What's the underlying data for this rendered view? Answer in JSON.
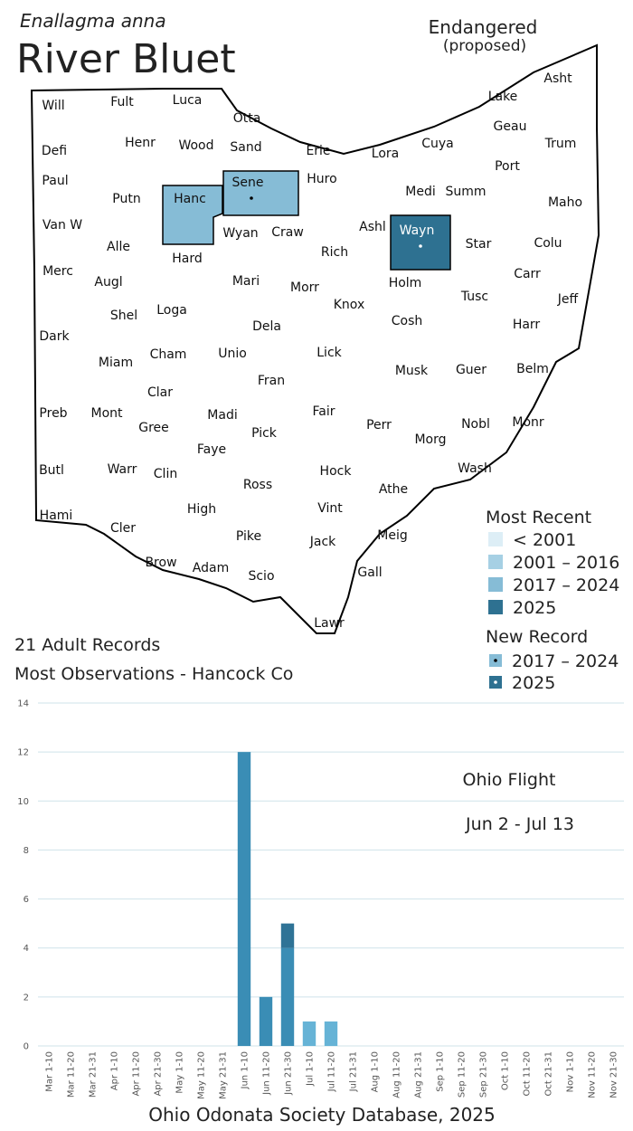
{
  "species": "Enallagma anna",
  "title": "River Bluet",
  "status": "Endangered",
  "status_note": "(proposed)",
  "map": {
    "outline_color": "#000000",
    "counties": [
      {
        "label": "Will"
      },
      {
        "label": "Fult"
      },
      {
        "label": "Luca"
      },
      {
        "label": "Otta"
      },
      {
        "label": "Defi"
      },
      {
        "label": "Henr"
      },
      {
        "label": "Wood"
      },
      {
        "label": "Sand"
      },
      {
        "label": "Erie"
      },
      {
        "label": "Lora"
      },
      {
        "label": "Cuya"
      },
      {
        "label": "Lake"
      },
      {
        "label": "Asht"
      },
      {
        "label": "Geau"
      },
      {
        "label": "Trum"
      },
      {
        "label": "Paul"
      },
      {
        "label": "Putn"
      },
      {
        "label": "Hanc",
        "fill": "#86bcd6"
      },
      {
        "label": "Sene",
        "fill": "#86bcd6",
        "marker": "#000000"
      },
      {
        "label": "Huro"
      },
      {
        "label": "Medi"
      },
      {
        "label": "Summ"
      },
      {
        "label": "Port"
      },
      {
        "label": "Maho"
      },
      {
        "label": "Van W"
      },
      {
        "label": "Alle"
      },
      {
        "label": "Wyan"
      },
      {
        "label": "Craw"
      },
      {
        "label": "Ashl"
      },
      {
        "label": "Wayn",
        "fill": "#2e7191",
        "marker": "#ffffff"
      },
      {
        "label": "Star"
      },
      {
        "label": "Colu"
      },
      {
        "label": "Merc"
      },
      {
        "label": "Augl"
      },
      {
        "label": "Hard"
      },
      {
        "label": "Mari"
      },
      {
        "label": "Morr"
      },
      {
        "label": "Rich"
      },
      {
        "label": "Holm"
      },
      {
        "label": "Tusc"
      },
      {
        "label": "Carr"
      },
      {
        "label": "Jeff"
      },
      {
        "label": "Shel"
      },
      {
        "label": "Loga"
      },
      {
        "label": "Dela"
      },
      {
        "label": "Knox"
      },
      {
        "label": "Cosh"
      },
      {
        "label": "Harr"
      },
      {
        "label": "Dark"
      },
      {
        "label": "Miam"
      },
      {
        "label": "Cham"
      },
      {
        "label": "Unio"
      },
      {
        "label": "Lick"
      },
      {
        "label": "Musk"
      },
      {
        "label": "Guer"
      },
      {
        "label": "Belm"
      },
      {
        "label": "Clar"
      },
      {
        "label": "Fran"
      },
      {
        "label": "Madi"
      },
      {
        "label": "Fair"
      },
      {
        "label": "Perr"
      },
      {
        "label": "Nobl"
      },
      {
        "label": "Monr"
      },
      {
        "label": "Preb"
      },
      {
        "label": "Mont"
      },
      {
        "label": "Gree"
      },
      {
        "label": "Faye"
      },
      {
        "label": "Pick"
      },
      {
        "label": "Morg"
      },
      {
        "label": "Butl"
      },
      {
        "label": "Warr"
      },
      {
        "label": "Clin"
      },
      {
        "label": "Ross"
      },
      {
        "label": "Hock"
      },
      {
        "label": "Athe"
      },
      {
        "label": "Wash"
      },
      {
        "label": "Hami"
      },
      {
        "label": "Cler"
      },
      {
        "label": "High"
      },
      {
        "label": "Vint"
      },
      {
        "label": "Pike"
      },
      {
        "label": "Jack"
      },
      {
        "label": "Meig"
      },
      {
        "label": "Brow"
      },
      {
        "label": "Adam"
      },
      {
        "label": "Scio"
      },
      {
        "label": "Gall"
      },
      {
        "label": "Lawr"
      }
    ]
  },
  "legend": {
    "title": "Most Recent",
    "items": [
      {
        "label": "< 2001",
        "color": "#ddeef6"
      },
      {
        "label": "2001 – 2016",
        "color": "#a6d0e4"
      },
      {
        "label": "2017 – 2024",
        "color": "#86bcd6"
      },
      {
        "label": "2025",
        "color": "#2e7191"
      }
    ]
  },
  "new_record": {
    "title": "New Record",
    "items": [
      {
        "label": "2017 – 2024",
        "color": "#86bcd6",
        "marker": "#000000"
      },
      {
        "label": "2025",
        "color": "#2e7191",
        "marker": "#ffffff"
      }
    ]
  },
  "summary": {
    "records": "21 Adult Records",
    "most": "Most Observations - Hancock Co"
  },
  "chart_data": {
    "type": "bar",
    "stacked": true,
    "categories": [
      "Mar 1-10",
      "Mar 11-20",
      "Mar 21-31",
      "Apr 1-10",
      "Apr 11-20",
      "Apr 21-30",
      "May 1-10",
      "May 11-20",
      "May 21-31",
      "Jun 1-10",
      "Jun 11-20",
      "Jun 21-30",
      "Jul 1-10",
      "Jul 11-20",
      "Jul 21-31",
      "Aug 1-10",
      "Aug 11-20",
      "Aug 21-31",
      "Sep 1-10",
      "Sep 11-20",
      "Sep 21-30",
      "Oct 1-10",
      "Oct 11-20",
      "Oct 21-31",
      "Nov 1-10",
      "Nov 11-20",
      "Nov 21-30"
    ],
    "series": [
      {
        "color": "#3a8db5",
        "values": [
          0,
          0,
          0,
          0,
          0,
          0,
          0,
          0,
          0,
          12,
          2,
          4,
          0,
          0,
          0,
          0,
          0,
          0,
          0,
          0,
          0,
          0,
          0,
          0,
          0,
          0,
          0
        ]
      },
      {
        "color": "#2f7396",
        "values": [
          0,
          0,
          0,
          0,
          0,
          0,
          0,
          0,
          0,
          0,
          0,
          1,
          0,
          0,
          0,
          0,
          0,
          0,
          0,
          0,
          0,
          0,
          0,
          0,
          0,
          0,
          0
        ]
      },
      {
        "color": "#66b3d6",
        "values": [
          0,
          0,
          0,
          0,
          0,
          0,
          0,
          0,
          0,
          0,
          0,
          0,
          1,
          1,
          0,
          0,
          0,
          0,
          0,
          0,
          0,
          0,
          0,
          0,
          0,
          0,
          0
        ]
      }
    ],
    "ylim": [
      0,
      14
    ],
    "yticks": [
      0,
      2,
      4,
      6,
      8,
      10,
      12,
      14
    ],
    "grid": true,
    "grid_color": "#cfe3ea",
    "annotations": [
      "Ohio Flight",
      "Jun 2 - Jul 13"
    ]
  },
  "source": "Ohio Odonata Society Database, 2025"
}
